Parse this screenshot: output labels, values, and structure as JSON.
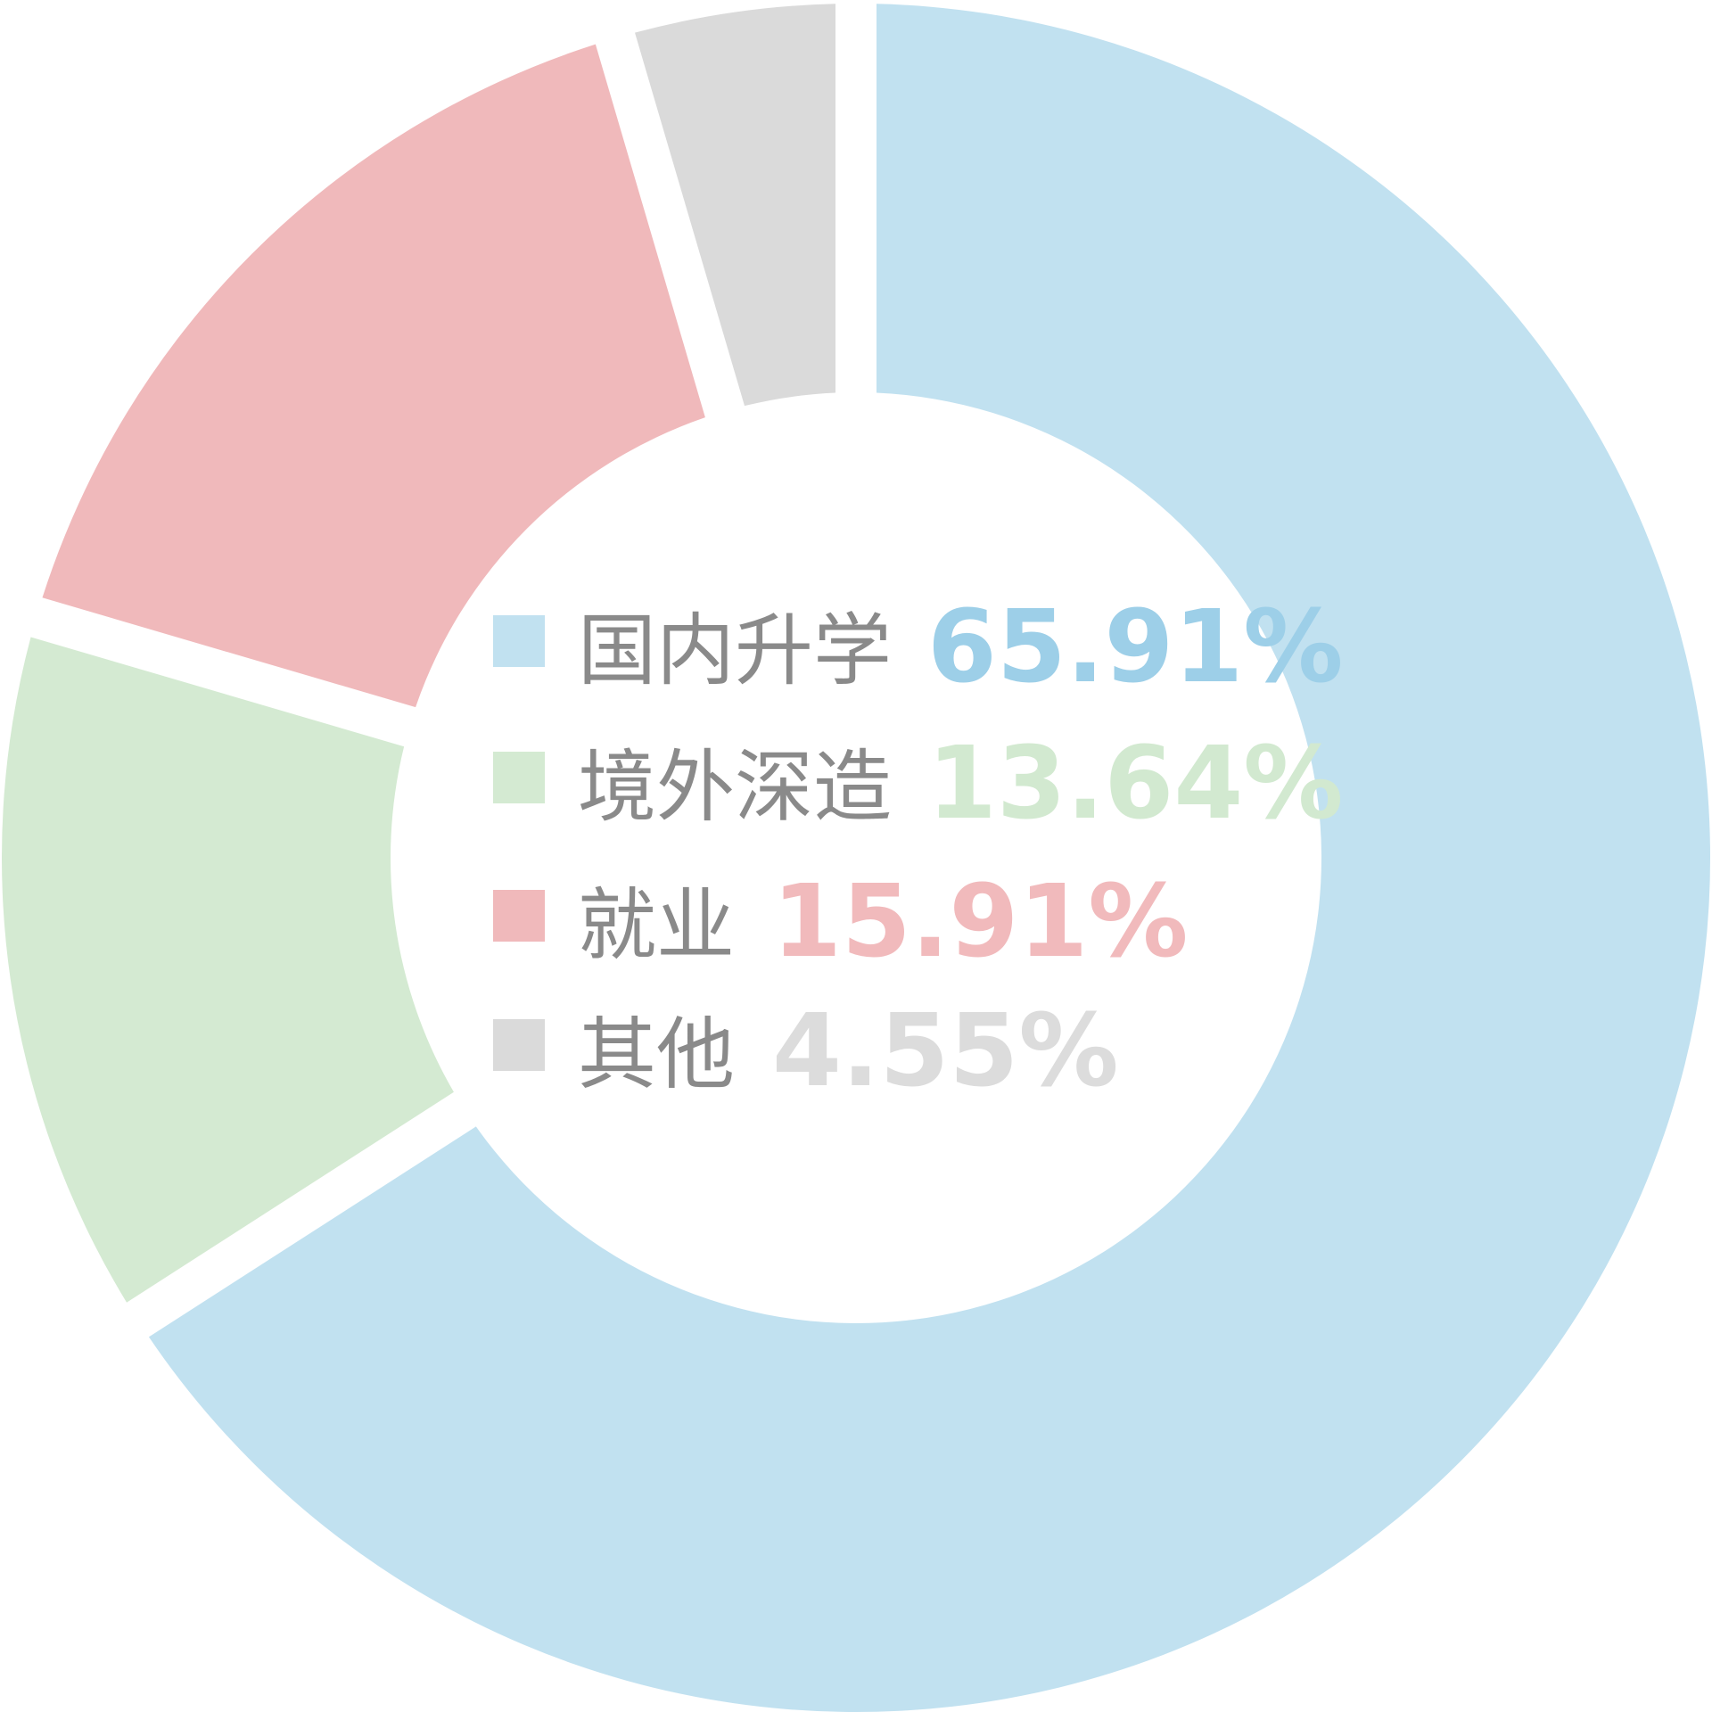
{
  "chart_data": {
    "type": "pie",
    "style": "donut",
    "title": "",
    "categories": [
      "国内升学",
      "境外深造",
      "就业",
      "其他"
    ],
    "values": [
      65.91,
      13.64,
      15.91,
      4.55
    ],
    "value_labels": [
      "65.91%",
      "13.64%",
      "15.91%",
      "4.55%"
    ],
    "colors": [
      "#c1e1f0",
      "#d4ead2",
      "#f0b9bb",
      "#dadada"
    ],
    "label_colors": [
      "#9dcfe8",
      "#d2e9d0",
      "#f1babc",
      "#dcdcdc"
    ],
    "legend_position": "center",
    "start_angle_deg": 0,
    "direction": "clockwise"
  }
}
